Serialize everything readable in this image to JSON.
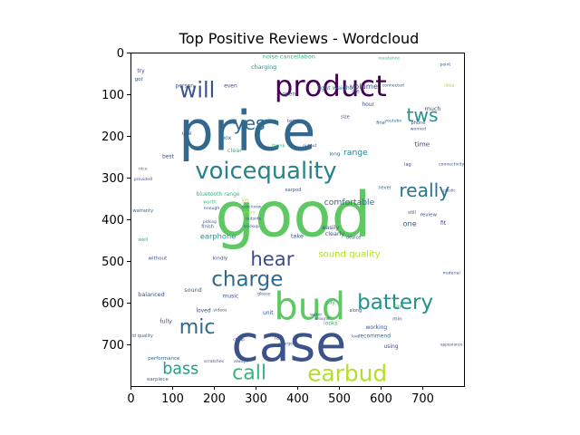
{
  "chart_data": {
    "type": "wordcloud",
    "title": "Top Positive Reviews - Wordcloud",
    "xlabel": "",
    "ylabel": "",
    "xlim": [
      0,
      800
    ],
    "ylim": [
      800,
      0
    ],
    "x_ticks": [
      0,
      100,
      200,
      300,
      400,
      500,
      600,
      700
    ],
    "y_ticks": [
      0,
      100,
      200,
      300,
      400,
      500,
      600,
      700
    ],
    "grid": false,
    "words": [
      {
        "text": "good",
        "x": 390,
        "y": 390,
        "size": 150,
        "color": "#5ec962"
      },
      {
        "text": "price",
        "x": 280,
        "y": 190,
        "size": 132,
        "color": "#31688e"
      },
      {
        "text": "case",
        "x": 380,
        "y": 700,
        "size": 120,
        "color": "#3b528b"
      },
      {
        "text": "bud",
        "x": 430,
        "y": 610,
        "size": 90,
        "color": "#5ec962"
      },
      {
        "text": "product",
        "x": 480,
        "y": 80,
        "size": 70,
        "color": "#440154"
      },
      {
        "text": "voicequality",
        "x": 325,
        "y": 285,
        "size": 56,
        "color": "#26828e"
      },
      {
        "text": "earbud",
        "x": 520,
        "y": 770,
        "size": 54,
        "color": "#b5de2b"
      },
      {
        "text": "will",
        "x": 160,
        "y": 90,
        "size": 52,
        "color": "#3b528b"
      },
      {
        "text": "charge",
        "x": 280,
        "y": 545,
        "size": 50,
        "color": "#31688e"
      },
      {
        "text": "battery",
        "x": 635,
        "y": 600,
        "size": 50,
        "color": "#21918c"
      },
      {
        "text": "call",
        "x": 285,
        "y": 770,
        "size": 48,
        "color": "#35b779"
      },
      {
        "text": "mic",
        "x": 160,
        "y": 660,
        "size": 48,
        "color": "#31688e"
      },
      {
        "text": "hear",
        "x": 340,
        "y": 495,
        "size": 46,
        "color": "#3e4a89"
      },
      {
        "text": "yes",
        "x": 285,
        "y": 170,
        "size": 44,
        "color": "#31688e"
      },
      {
        "text": "tws",
        "x": 700,
        "y": 150,
        "size": 44,
        "color": "#21918c"
      },
      {
        "text": "really",
        "x": 705,
        "y": 330,
        "size": 44,
        "color": "#2c728e"
      },
      {
        "text": "bass",
        "x": 120,
        "y": 760,
        "size": 38,
        "color": "#1f9e89"
      },
      {
        "text": "sound quality",
        "x": 525,
        "y": 485,
        "size": 22,
        "color": "#b5de2b"
      },
      {
        "text": "comfortable",
        "x": 525,
        "y": 360,
        "size": 20,
        "color": "#31688e"
      },
      {
        "text": "range",
        "x": 540,
        "y": 240,
        "size": 20,
        "color": "#26828e"
      },
      {
        "text": "earphone",
        "x": 210,
        "y": 440,
        "size": 18,
        "color": "#21918c"
      },
      {
        "text": "volume",
        "x": 560,
        "y": 80,
        "size": 18,
        "color": "#3b528b"
      },
      {
        "text": "one",
        "x": 670,
        "y": 410,
        "size": 18,
        "color": "#3b528b"
      },
      {
        "text": "time",
        "x": 700,
        "y": 220,
        "size": 16,
        "color": "#3e4a89"
      },
      {
        "text": "charging",
        "x": 320,
        "y": 35,
        "size": 14,
        "color": "#21918c"
      },
      {
        "text": "noise cancellation",
        "x": 380,
        "y": 10,
        "size": 14,
        "color": "#35b779"
      },
      {
        "text": "light weight",
        "x": 490,
        "y": 85,
        "size": 14,
        "color": "#31688e"
      },
      {
        "text": "bluetooth range",
        "x": 210,
        "y": 340,
        "size": 13,
        "color": "#35b779"
      },
      {
        "text": "easily",
        "x": 480,
        "y": 420,
        "size": 14,
        "color": "#3e4a89"
      },
      {
        "text": "clearly",
        "x": 490,
        "y": 435,
        "size": 14,
        "color": "#3b528b"
      },
      {
        "text": "take",
        "x": 400,
        "y": 440,
        "size": 14,
        "color": "#3b528b"
      },
      {
        "text": "clear",
        "x": 250,
        "y": 235,
        "size": 14,
        "color": "#35b779"
      },
      {
        "text": "balanced",
        "x": 50,
        "y": 580,
        "size": 14,
        "color": "#3b528b"
      },
      {
        "text": "sound",
        "x": 150,
        "y": 570,
        "size": 14,
        "color": "#31688e"
      },
      {
        "text": "music",
        "x": 240,
        "y": 585,
        "size": 13,
        "color": "#3e4a89"
      },
      {
        "text": "fully",
        "x": 85,
        "y": 645,
        "size": 14,
        "color": "#3b528b"
      },
      {
        "text": "loved",
        "x": 175,
        "y": 620,
        "size": 13,
        "color": "#3e4a89"
      },
      {
        "text": "unit",
        "x": 330,
        "y": 625,
        "size": 13,
        "color": "#3b528b"
      },
      {
        "text": "fall",
        "x": 355,
        "y": 685,
        "size": 13,
        "color": "#3e4a89"
      },
      {
        "text": "working",
        "x": 590,
        "y": 660,
        "size": 13,
        "color": "#3b528b"
      },
      {
        "text": "recommend",
        "x": 585,
        "y": 680,
        "size": 13,
        "color": "#31688e"
      },
      {
        "text": "using",
        "x": 625,
        "y": 705,
        "size": 13,
        "color": "#3e4a89"
      },
      {
        "text": "hour",
        "x": 570,
        "y": 125,
        "size": 13,
        "color": "#3e4a89"
      },
      {
        "text": "much",
        "x": 725,
        "y": 135,
        "size": 14,
        "color": "#3e4a89"
      },
      {
        "text": "open",
        "x": 380,
        "y": 100,
        "size": 13,
        "color": "#3b528b"
      },
      {
        "text": "even",
        "x": 240,
        "y": 80,
        "size": 13,
        "color": "#3e4a89"
      },
      {
        "text": "person",
        "x": 130,
        "y": 80,
        "size": 13,
        "color": "#3b528b"
      },
      {
        "text": "box",
        "x": 230,
        "y": 205,
        "size": 13,
        "color": "#31688e"
      },
      {
        "text": "best",
        "x": 90,
        "y": 250,
        "size": 13,
        "color": "#3b528b"
      },
      {
        "text": "use",
        "x": 135,
        "y": 195,
        "size": 13,
        "color": "#3b528b"
      },
      {
        "text": "try",
        "x": 25,
        "y": 45,
        "size": 13,
        "color": "#3e4a89"
      },
      {
        "text": "got",
        "x": 20,
        "y": 65,
        "size": 12,
        "color": "#3b528b"
      },
      {
        "text": "well",
        "x": 30,
        "y": 450,
        "size": 12,
        "color": "#35b779"
      },
      {
        "text": "review",
        "x": 715,
        "y": 390,
        "size": 12,
        "color": "#3b528b"
      },
      {
        "text": "fit",
        "x": 750,
        "y": 410,
        "size": 13,
        "color": "#3e4a89"
      },
      {
        "text": "day",
        "x": 640,
        "y": 610,
        "size": 12,
        "color": "#35b779"
      },
      {
        "text": "min",
        "x": 640,
        "y": 640,
        "size": 12,
        "color": "#3b528b"
      },
      {
        "text": "say",
        "x": 480,
        "y": 600,
        "size": 13,
        "color": "#35b779"
      },
      {
        "text": "looks",
        "x": 480,
        "y": 650,
        "size": 13,
        "color": "#35b779"
      },
      {
        "text": "without",
        "x": 65,
        "y": 495,
        "size": 12,
        "color": "#3b528b"
      },
      {
        "text": "kindly",
        "x": 215,
        "y": 495,
        "size": 12,
        "color": "#3e4a89"
      },
      {
        "text": "performance",
        "x": 80,
        "y": 735,
        "size": 12,
        "color": "#31688e"
      },
      {
        "text": "earpiece",
        "x": 65,
        "y": 785,
        "size": 12,
        "color": "#31688e"
      },
      {
        "text": "along",
        "x": 540,
        "y": 620,
        "size": 11,
        "color": "#3b528b"
      },
      {
        "text": "term",
        "x": 390,
        "y": 165,
        "size": 12,
        "color": "#3b528b"
      },
      {
        "text": "life",
        "x": 540,
        "y": 95,
        "size": 12,
        "color": "#3e4a89"
      },
      {
        "text": "lag",
        "x": 665,
        "y": 270,
        "size": 11,
        "color": "#3e4a89"
      },
      {
        "text": "still",
        "x": 675,
        "y": 385,
        "size": 11,
        "color": "#3b528b"
      },
      {
        "text": "never",
        "x": 610,
        "y": 325,
        "size": 11,
        "color": "#31688e"
      },
      {
        "text": "device",
        "x": 535,
        "y": 445,
        "size": 11,
        "color": "#31688e"
      },
      {
        "text": "size",
        "x": 515,
        "y": 155,
        "size": 11,
        "color": "#3b528b"
      },
      {
        "text": "fine",
        "x": 600,
        "y": 170,
        "size": 11,
        "color": "#3b528b"
      },
      {
        "text": "worried",
        "x": 690,
        "y": 185,
        "size": 10,
        "color": "#3b528b"
      },
      {
        "text": "phone",
        "x": 690,
        "y": 170,
        "size": 11,
        "color": "#3b528b"
      },
      {
        "text": "youtube",
        "x": 630,
        "y": 165,
        "size": 10,
        "color": "#31688e"
      },
      {
        "text": "connected",
        "x": 630,
        "y": 80,
        "size": 10,
        "color": "#3b528b"
      },
      {
        "text": "resistance",
        "x": 620,
        "y": 15,
        "size": 10,
        "color": "#35b779"
      },
      {
        "text": "point",
        "x": 755,
        "y": 30,
        "size": 10,
        "color": "#3b528b"
      },
      {
        "text": "little",
        "x": 765,
        "y": 80,
        "size": 11,
        "color": "#b5de2b"
      },
      {
        "text": "thank",
        "x": 355,
        "y": 225,
        "size": 11,
        "color": "#35b779"
      },
      {
        "text": "output",
        "x": 430,
        "y": 225,
        "size": 10,
        "color": "#3b528b"
      },
      {
        "text": "long",
        "x": 490,
        "y": 245,
        "size": 12,
        "color": "#31688e"
      },
      {
        "text": "earpod",
        "x": 390,
        "y": 330,
        "size": 11,
        "color": "#3b528b"
      },
      {
        "text": "job",
        "x": 275,
        "y": 355,
        "size": 11,
        "color": "#b5de2b"
      },
      {
        "text": "dont know",
        "x": 290,
        "y": 370,
        "size": 9,
        "color": "#3b528b"
      },
      {
        "text": "every",
        "x": 285,
        "y": 385,
        "size": 10,
        "color": "#b5de2b"
      },
      {
        "text": "outside",
        "x": 295,
        "y": 400,
        "size": 10,
        "color": "#3e4a89"
      },
      {
        "text": "backup",
        "x": 290,
        "y": 418,
        "size": 10,
        "color": "#3b528b"
      },
      {
        "text": "worth",
        "x": 190,
        "y": 360,
        "size": 11,
        "color": "#35b779"
      },
      {
        "text": "enough",
        "x": 195,
        "y": 375,
        "size": 10,
        "color": "#3b528b"
      },
      {
        "text": "finish",
        "x": 185,
        "y": 418,
        "size": 11,
        "color": "#3b528b"
      },
      {
        "text": "picking",
        "x": 190,
        "y": 405,
        "size": 9,
        "color": "#3b528b"
      },
      {
        "text": "warranty",
        "x": 30,
        "y": 380,
        "size": 11,
        "color": "#31688e"
      },
      {
        "text": "provided",
        "x": 30,
        "y": 305,
        "size": 10,
        "color": "#3b528b"
      },
      {
        "text": "nice",
        "x": 30,
        "y": 280,
        "size": 10,
        "color": "#31688e"
      },
      {
        "text": "build quality",
        "x": 20,
        "y": 680,
        "size": 11,
        "color": "#31688e"
      },
      {
        "text": "videos",
        "x": 215,
        "y": 620,
        "size": 10,
        "color": "#3b528b"
      },
      {
        "text": "scratches",
        "x": 200,
        "y": 742,
        "size": 10,
        "color": "#3e4a89"
      },
      {
        "text": "always",
        "x": 265,
        "y": 742,
        "size": 10,
        "color": "#3b528b"
      },
      {
        "text": "glossy",
        "x": 320,
        "y": 580,
        "size": 10,
        "color": "#3b528b"
      },
      {
        "text": "water",
        "x": 445,
        "y": 630,
        "size": 10,
        "color": "#3b528b"
      },
      {
        "text": "around",
        "x": 460,
        "y": 640,
        "size": 10,
        "color": "#3e4a89"
      },
      {
        "text": "charged",
        "x": 375,
        "y": 700,
        "size": 10,
        "color": "#3b528b"
      },
      {
        "text": "cheap",
        "x": 260,
        "y": 688,
        "size": 9,
        "color": "#3b528b"
      },
      {
        "text": "love",
        "x": 540,
        "y": 680,
        "size": 9,
        "color": "#3b528b"
      },
      {
        "text": "connectivity",
        "x": 770,
        "y": 270,
        "size": 10,
        "color": "#3b528b"
      },
      {
        "text": "plastic",
        "x": 765,
        "y": 330,
        "size": 9,
        "color": "#3b528b"
      },
      {
        "text": "material",
        "x": 770,
        "y": 530,
        "size": 10,
        "color": "#3b528b"
      },
      {
        "text": "appearance",
        "x": 770,
        "y": 700,
        "size": 9,
        "color": "#3b528b"
      }
    ]
  }
}
